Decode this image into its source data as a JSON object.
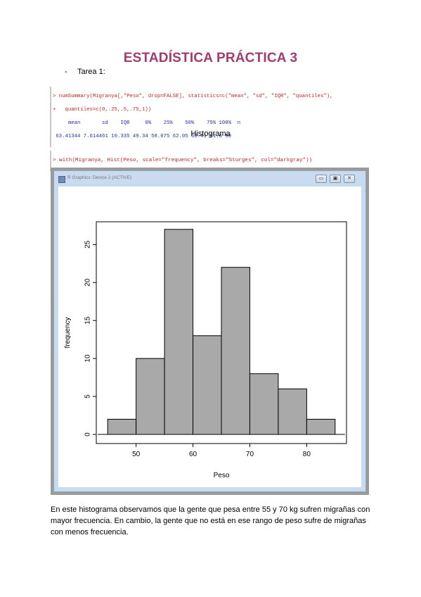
{
  "document": {
    "title": "ESTADÍSTICA PRÁCTICA 3",
    "bullet_dash": "-",
    "bullet_text": "Tarea 1:",
    "console1": {
      "line1": "> numSummary(Migranya[,\"Peso\", drop=FALSE], statistics=c(\"mean\", \"sd\", \"IQR\", \"quantiles\"),",
      "line2": "+   quantiles=c(0,.25,.5,.75,1))",
      "header": "     mean       sd    IQR     0%    25%    50%    75% 100%  n",
      "values": " 63.41344 7.614461 10.335 49.34 58.075 62.05 68.41 81.6 90"
    },
    "section_heading": "Histograma",
    "console2": {
      "line1": "> with(Migranya, Hist(Peso, scale=\"frequency\", breaks=\"Sturges\", col=\"darkgray\"))"
    },
    "graphics_window": {
      "title": "R Graphics: Device 2 (ACTIVE)",
      "buttons": {
        "minimize": "▭",
        "maximize": "▣",
        "close": "✕"
      }
    },
    "paragraph": "En este histograma observamos que la gente que pesa entre 55 y 70 kg sufren migrañas con mayor frecuencia. En cambio, la gente que no está en ese rango de peso sufre de migrañas con menos frecuencia."
  },
  "chart_data": {
    "type": "bar",
    "bins": [
      [
        45,
        50
      ],
      [
        50,
        55
      ],
      [
        55,
        60
      ],
      [
        60,
        65
      ],
      [
        65,
        70
      ],
      [
        70,
        75
      ],
      [
        75,
        80
      ],
      [
        80,
        85
      ]
    ],
    "values": [
      2,
      10,
      27,
      13,
      22,
      8,
      6,
      2
    ],
    "xlabel": "Peso",
    "ylabel": "frequency",
    "xlim": [
      45,
      85
    ],
    "ylim": [
      0,
      28
    ],
    "xticks": [
      50,
      60,
      70,
      80
    ],
    "yticks": [
      0,
      5,
      10,
      15,
      20,
      25
    ],
    "bar_color": "#a9a9a9",
    "grid": false
  },
  "colors": {
    "title": "#a33b6f",
    "command": "#c0281f",
    "output": "#1f2fa8"
  }
}
